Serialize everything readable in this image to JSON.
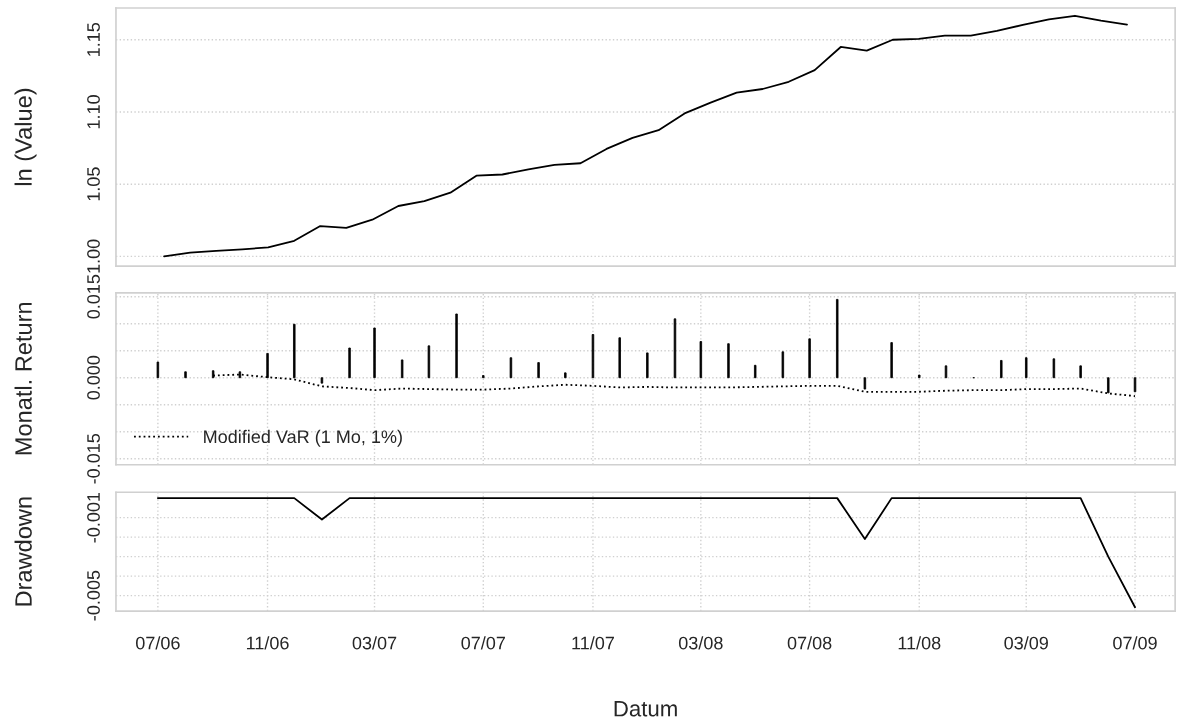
{
  "chart_data": [
    {
      "type": "line",
      "ylabel": "ln (Value)",
      "color": "#000000",
      "grid": "y",
      "categories": [
        null,
        null,
        null,
        null,
        null,
        null,
        null,
        null,
        null,
        null,
        null,
        null,
        null,
        null,
        null,
        null,
        null,
        null,
        null,
        null,
        null,
        null,
        null,
        null,
        null,
        null,
        null,
        null,
        null,
        null,
        null,
        null,
        null,
        null,
        null,
        null,
        null,
        null
      ],
      "values": [
        1.0,
        1.0026,
        1.0038,
        1.0049,
        1.0062,
        1.0108,
        1.021,
        1.0197,
        1.0254,
        1.0349,
        1.0382,
        1.0441,
        1.0559,
        1.0567,
        1.0603,
        1.0633,
        1.0645,
        1.0744,
        1.0821,
        1.0874,
        1.099,
        1.1065,
        1.1134,
        1.1159,
        1.1209,
        1.129,
        1.145,
        1.1425,
        1.15,
        1.1506,
        1.1528,
        1.1528,
        1.1561,
        1.1603,
        1.1641,
        1.1666,
        1.1633,
        1.1605
      ],
      "ylim": [
        0.9933,
        1.172
      ],
      "yticks": [
        {
          "value": 1.0,
          "label": "1.00"
        },
        {
          "value": 1.05,
          "label": "1.05"
        },
        {
          "value": 1.1,
          "label": "1.10"
        },
        {
          "value": 1.15,
          "label": "1.15"
        }
      ]
    },
    {
      "type": "bar",
      "ylabel": "Monatl. Return",
      "grid": true,
      "tick_labels": "y",
      "legend": "bottom left",
      "x": [
        "2006-07",
        "2006-08",
        "2006-09",
        "2006-10",
        "2006-11",
        "2006-12",
        "2007-01",
        "2007-02",
        "2007-03",
        "2007-04",
        "2007-05",
        "2007-06",
        "2007-07",
        "2007-08",
        "2007-09",
        "2007-10",
        "2007-11",
        "2007-12",
        "2008-01",
        "2008-02",
        "2008-03",
        "2008-04",
        "2008-05",
        "2008-06",
        "2008-07",
        "2008-08",
        "2008-09",
        "2008-10",
        "2008-11",
        "2008-12",
        "2009-01",
        "2009-02",
        "2009-03",
        "2009-04",
        "2009-05",
        "2009-06",
        "2009-07"
      ],
      "series": [
        {
          "type": "bar",
          "color": "#000000",
          "values": [
            0.0029,
            0.0011,
            0.0013,
            0.0011,
            0.0045,
            0.0099,
            -0.001,
            0.0055,
            0.0092,
            0.0033,
            0.0059,
            0.0118,
            0.0004,
            0.0037,
            0.0028,
            0.0009,
            0.008,
            0.0074,
            0.0046,
            0.0109,
            0.0067,
            0.0063,
            0.0023,
            0.0048,
            0.0072,
            0.0145,
            -0.0021,
            0.0065,
            0.0005,
            0.0022,
            0.0,
            0.0032,
            0.0037,
            0.0035,
            0.0022,
            -0.0028,
            -0.0026
          ]
        },
        {
          "type": "line",
          "name": "Modified VaR (1 Mo, 1%)",
          "color": "#000000",
          "line_style": "dotted",
          "values": [
            null,
            null,
            0.0004,
            0.0006,
            0.0001,
            -0.0003,
            -0.0016,
            -0.0019,
            -0.0023,
            -0.002,
            -0.0021,
            -0.0022,
            -0.0022,
            -0.002,
            -0.0016,
            -0.0013,
            -0.0015,
            -0.0018,
            -0.0017,
            -0.0018,
            -0.0018,
            -0.0018,
            -0.0017,
            -0.0016,
            -0.0015,
            -0.0015,
            -0.0026,
            -0.0026,
            -0.0026,
            -0.0024,
            -0.0023,
            -0.0023,
            -0.0021,
            -0.0021,
            -0.002,
            -0.0029,
            -0.0034
          ]
        }
      ],
      "xlim": [
        "2006-05-15",
        "2009-08-15"
      ],
      "xticks": [
        {
          "value": "2006-07",
          "label": null
        },
        {
          "value": "2006-11",
          "label": null
        },
        {
          "value": "2007-03",
          "label": null
        },
        {
          "value": "2007-07",
          "label": null
        },
        {
          "value": "2007-11",
          "label": null
        },
        {
          "value": "2008-03",
          "label": null
        },
        {
          "value": "2008-07",
          "label": null
        },
        {
          "value": "2008-11",
          "label": null
        },
        {
          "value": "2009-03",
          "label": null
        },
        {
          "value": "2009-07",
          "label": null
        }
      ],
      "ylim": [
        -0.0161,
        0.0157
      ],
      "yticks": [
        {
          "value": -0.015,
          "label": "-0.015"
        },
        {
          "value": -0.01,
          "label": null
        },
        {
          "value": -0.005,
          "label": null
        },
        {
          "value": 0.0,
          "label": "0.000"
        },
        {
          "value": 0.005,
          "label": null
        },
        {
          "value": 0.01,
          "label": null
        },
        {
          "value": 0.015,
          "label": "0.015"
        }
      ]
    },
    {
      "type": "line",
      "ylabel": "Drawdown",
      "xlabel": "Datum",
      "color": "#000000",
      "grid": true,
      "x": [
        "2006-07",
        "2006-08",
        "2006-09",
        "2006-10",
        "2006-11",
        "2006-12",
        "2007-01",
        "2007-02",
        "2007-03",
        "2007-04",
        "2007-05",
        "2007-06",
        "2007-07",
        "2007-08",
        "2007-09",
        "2007-10",
        "2007-11",
        "2007-12",
        "2008-01",
        "2008-02",
        "2008-03",
        "2008-04",
        "2008-05",
        "2008-06",
        "2008-07",
        "2008-08",
        "2008-09",
        "2008-10",
        "2008-11",
        "2008-12",
        "2009-01",
        "2009-02",
        "2009-03",
        "2009-04",
        "2009-05",
        "2009-06",
        "2009-07"
      ],
      "values": [
        0,
        0,
        0,
        0,
        0,
        0,
        -0.0011,
        0,
        0,
        0,
        0,
        0,
        0,
        0,
        0,
        0,
        0,
        0,
        0,
        0,
        0,
        0,
        0,
        0,
        0,
        0,
        -0.0021,
        0,
        0,
        0,
        0,
        0,
        0,
        0,
        0,
        -0.003,
        -0.0056
      ],
      "xlim": [
        "2006-05-15",
        "2009-08-15"
      ],
      "xticks": [
        {
          "value": "2006-07",
          "label": "07/06"
        },
        {
          "value": "2006-11",
          "label": "11/06"
        },
        {
          "value": "2007-03",
          "label": "03/07"
        },
        {
          "value": "2007-07",
          "label": "07/07"
        },
        {
          "value": "2007-11",
          "label": "11/07"
        },
        {
          "value": "2008-03",
          "label": "03/08"
        },
        {
          "value": "2008-07",
          "label": "07/08"
        },
        {
          "value": "2008-11",
          "label": "11/08"
        },
        {
          "value": "2009-03",
          "label": "03/09"
        },
        {
          "value": "2009-07",
          "label": "07/09"
        }
      ],
      "ylim": [
        -0.0058,
        0.0003
      ],
      "yticks": [
        {
          "value": -0.005,
          "label": "-0.005"
        },
        {
          "value": -0.004,
          "label": null
        },
        {
          "value": -0.003,
          "label": null
        },
        {
          "value": -0.002,
          "label": null
        },
        {
          "value": -0.001,
          "label": "-0.001"
        }
      ]
    }
  ]
}
